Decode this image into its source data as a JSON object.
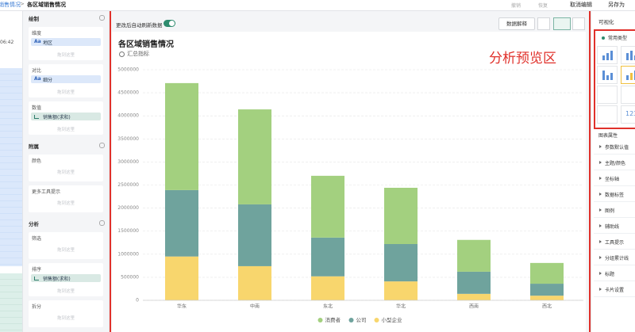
{
  "breadcrumb": {
    "parent": "销售情况",
    "separator": ">",
    "current": "各区域销售情况"
  },
  "top_actions": {
    "undo": "撤销",
    "redo": "恢复",
    "cancel": "取消编辑",
    "save_as": "另存为"
  },
  "left_strip": {
    "time": "06:42"
  },
  "field_panel": {
    "placeholder": "拖到这里",
    "sections": [
      {
        "title": "绘制",
        "wells": [
          {
            "label": "维度",
            "field": "地区",
            "field_icon": "Aa",
            "kind": "dimension"
          },
          {
            "label": "对比",
            "field": "细分",
            "field_icon": "Aa",
            "kind": "dimension"
          },
          {
            "label": "数值",
            "field": "销售额(求和)",
            "kind": "measure"
          }
        ]
      },
      {
        "title": "附属",
        "wells": [
          {
            "label": "颜色"
          },
          {
            "label": "更多工具提示"
          }
        ]
      },
      {
        "title": "分析",
        "wells": [
          {
            "label": "筛选"
          },
          {
            "label": "排序",
            "field": "销售额(求和)",
            "kind": "measure"
          },
          {
            "label": "拆分"
          }
        ]
      }
    ]
  },
  "toolbar": {
    "auto_refresh": "更改后自动刷新数据",
    "explain": "数据解释"
  },
  "annotation": "分析预览区",
  "chart_data": {
    "type": "bar",
    "stacked": true,
    "title": "各区域销售情况",
    "subtitle": "汇总指标",
    "categories": [
      "华东",
      "中南",
      "东北",
      "华北",
      "西南",
      "西北"
    ],
    "series": [
      {
        "name": "消费者",
        "color": "#a3d07f",
        "values": [
          2320000,
          2060000,
          1340000,
          1220000,
          690000,
          450000
        ]
      },
      {
        "name": "公司",
        "color": "#6fa39d",
        "values": [
          1440000,
          1340000,
          840000,
          810000,
          480000,
          260000
        ]
      },
      {
        "name": "小型企业",
        "color": "#f8d66d",
        "values": [
          950000,
          740000,
          520000,
          410000,
          140000,
          100000
        ]
      }
    ],
    "ylim": [
      0,
      5000000
    ],
    "yticks": [
      0,
      500000,
      1000000,
      1500000,
      2000000,
      2500000,
      3000000,
      3500000,
      4000000,
      4500000,
      5000000
    ],
    "grid": true,
    "legend": "bottom"
  },
  "right_panel": {
    "title": "可视化",
    "common_types": "常用类型",
    "kpi_icon": "123",
    "properties_title": "图表属性",
    "properties": [
      "参数默认值",
      "主题/颜色",
      "坐标轴",
      "数据标签",
      "图例",
      "辅助线",
      "工具提示",
      "分组累计线",
      "标题",
      "卡片设置"
    ]
  }
}
